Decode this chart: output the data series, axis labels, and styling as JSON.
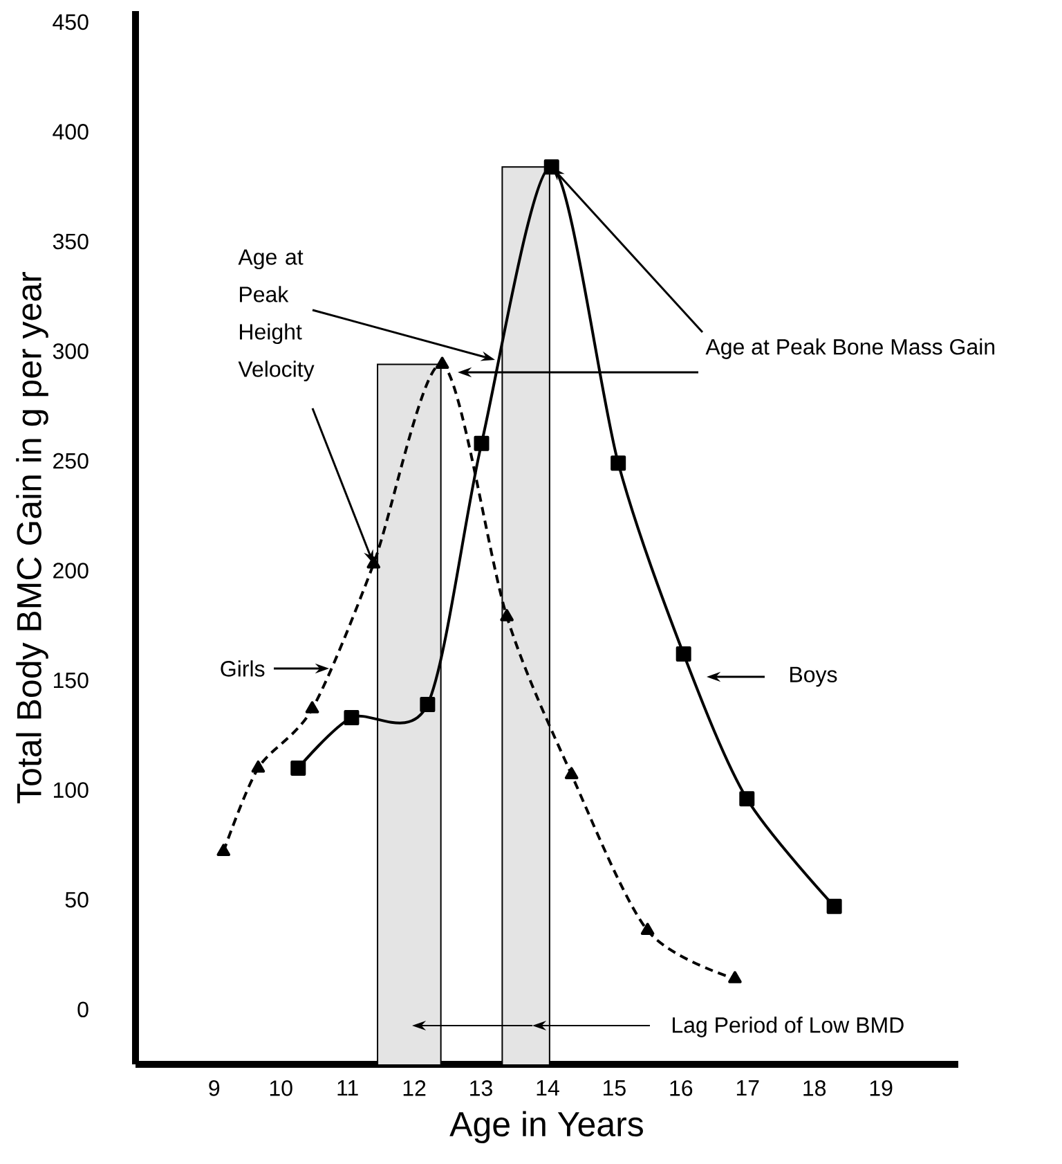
{
  "chart_data": {
    "type": "line",
    "xlabel": "Age in Years",
    "ylabel": "Total Body BMC Gain in g per year",
    "xlim": [
      7.82,
      20.16
    ],
    "ylim": [
      -25,
      455
    ],
    "xticks": [
      9,
      10,
      11,
      12,
      13,
      14,
      15,
      16,
      17,
      18,
      19
    ],
    "yticks": [
      0,
      50,
      100,
      150,
      200,
      250,
      300,
      350,
      400,
      450
    ],
    "series": [
      {
        "name": "Girls",
        "color": "#000000",
        "marker": "triangle",
        "line_style": "dashed",
        "x": [
          9.14,
          9.66,
          10.47,
          11.39,
          12.42,
          13.39,
          14.36,
          15.5,
          16.81
        ],
        "values": [
          72,
          110,
          137,
          203,
          294,
          179,
          107,
          36,
          14
        ]
      },
      {
        "name": "Boys",
        "color": "#000000",
        "marker": "square",
        "line_style": "solid",
        "x": [
          10.26,
          11.06,
          12.2,
          13.01,
          14.06,
          15.06,
          16.04,
          16.99,
          18.3
        ],
        "values": [
          110,
          133,
          139,
          258,
          384,
          249,
          162,
          96,
          47
        ]
      }
    ],
    "bands": [
      {
        "axis": "x",
        "from": 11.45,
        "to": 12.4,
        "color": "#e4e4e4"
      },
      {
        "axis": "x",
        "from": 13.32,
        "to": 14.03,
        "color": "#e4e4e4"
      }
    ],
    "annotations": [
      {
        "text": "Age at Peak Height Velocity",
        "x": 11.39,
        "y": 203
      },
      {
        "text": "Age at Peak Bone Mass Gain",
        "x": 14.06,
        "y": 384
      },
      "Lag Period of Low BMD"
    ]
  }
}
